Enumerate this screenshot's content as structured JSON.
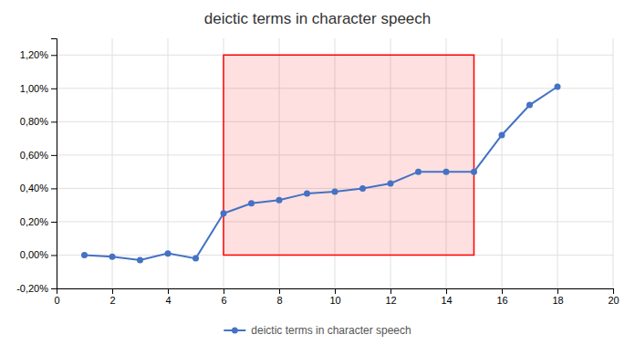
{
  "chart_data": {
    "type": "line",
    "title": "deictic terms in character speech",
    "x": [
      1,
      2,
      3,
      4,
      5,
      6,
      7,
      8,
      9,
      10,
      11,
      12,
      13,
      14,
      15,
      16,
      17,
      18
    ],
    "series": [
      {
        "name": "deictic terms in character speech",
        "color": "#4472C4",
        "marker": "circle",
        "values": [
          0.0,
          -0.0001,
          -0.0003,
          0.0001,
          -0.0002,
          0.0025,
          0.0031,
          0.0033,
          0.0037,
          0.0038,
          0.004,
          0.0043,
          0.005,
          0.005,
          0.005,
          0.0072,
          0.009,
          0.0101
        ]
      }
    ],
    "xlim": [
      0,
      20
    ],
    "ylim": [
      -0.002,
      0.013
    ],
    "xticks": [
      0,
      2,
      4,
      6,
      8,
      10,
      12,
      14,
      16,
      18,
      20
    ],
    "yticks": [
      {
        "value": -0.002,
        "label": "-0,20%"
      },
      {
        "value": 0.0,
        "label": "0,00%"
      },
      {
        "value": 0.002,
        "label": "0,20%"
      },
      {
        "value": 0.004,
        "label": "0,40%"
      },
      {
        "value": 0.006,
        "label": "0,60%"
      },
      {
        "value": 0.008,
        "label": "0,80%"
      },
      {
        "value": 0.01,
        "label": "1,00%"
      },
      {
        "value": 0.012,
        "label": "1,20%"
      }
    ],
    "highlight": {
      "x": [
        6,
        15
      ],
      "y": [
        0.0,
        0.012
      ],
      "color": "#FF0000"
    },
    "grid": true,
    "legend": "bottom"
  }
}
